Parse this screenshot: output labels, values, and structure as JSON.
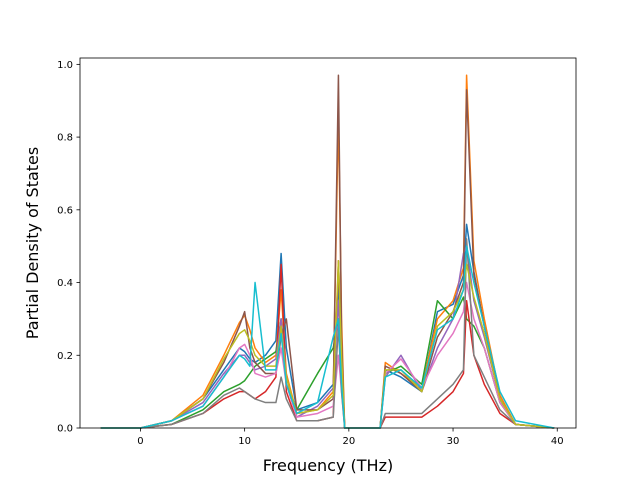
{
  "chart_data": {
    "type": "line",
    "title": "",
    "xlabel": "Frequency (THz)",
    "ylabel": "Partial Density of States",
    "xlim": [
      -5.8,
      41.8
    ],
    "ylim": [
      0,
      1.0175
    ],
    "xticks": [
      0,
      10,
      20,
      30,
      40
    ],
    "yticks": [
      0.0,
      0.2,
      0.4,
      0.6,
      0.8,
      1.0
    ],
    "xtick_labels": [
      "0",
      "10",
      "20",
      "30",
      "40"
    ],
    "ytick_labels": [
      "0.0",
      "0.2",
      "0.4",
      "0.6",
      "0.8",
      "1.0"
    ],
    "grid": false,
    "legend": "none",
    "series": [
      {
        "color": "#1f77b4",
        "x": [
          -3.8,
          0,
          3,
          6,
          8,
          9.5,
          10,
          10.5,
          11,
          12,
          13,
          13.5,
          14,
          15,
          17,
          18.5,
          19,
          19.3,
          19.6,
          23,
          23.5,
          25,
          27,
          28.5,
          30,
          31,
          31.3,
          32,
          33,
          34.5,
          36,
          39.7
        ],
        "y": [
          0,
          0,
          0.02,
          0.08,
          0.16,
          0.22,
          0.21,
          0.19,
          0.18,
          0.2,
          0.24,
          0.48,
          0.22,
          0.05,
          0.07,
          0.12,
          0.4,
          0.2,
          0.0,
          0.0,
          0.16,
          0.14,
          0.1,
          0.32,
          0.34,
          0.42,
          0.56,
          0.43,
          0.28,
          0.08,
          0.01,
          0
        ]
      },
      {
        "color": "#ff7f0e",
        "x": [
          -3.8,
          0,
          3,
          6,
          8,
          9.5,
          10,
          10.5,
          11,
          12,
          13,
          13.5,
          14,
          15,
          17,
          18.5,
          19,
          19.3,
          19.6,
          23,
          23.5,
          25,
          27,
          28.5,
          30,
          31,
          31.3,
          32,
          33,
          34.5,
          36,
          39.7
        ],
        "y": [
          0,
          0,
          0.02,
          0.09,
          0.2,
          0.29,
          0.31,
          0.27,
          0.22,
          0.18,
          0.2,
          0.38,
          0.15,
          0.04,
          0.05,
          0.1,
          0.86,
          0.3,
          0.0,
          0.0,
          0.18,
          0.15,
          0.11,
          0.3,
          0.35,
          0.44,
          0.97,
          0.46,
          0.3,
          0.09,
          0.01,
          0
        ]
      },
      {
        "color": "#2ca02c",
        "x": [
          -3.8,
          0,
          3,
          6,
          8,
          9.5,
          10,
          10.5,
          11,
          12,
          13,
          13.5,
          14,
          15,
          17,
          18.5,
          19,
          19.3,
          19.6,
          23,
          23.5,
          25,
          27,
          28.5,
          30,
          31,
          31.3,
          32,
          33,
          34.5,
          36,
          39.7
        ],
        "y": [
          0,
          0,
          0.01,
          0.05,
          0.1,
          0.12,
          0.13,
          0.15,
          0.17,
          0.19,
          0.21,
          0.3,
          0.12,
          0.05,
          0.15,
          0.22,
          0.3,
          0.15,
          0.0,
          0.0,
          0.15,
          0.17,
          0.12,
          0.35,
          0.3,
          0.36,
          0.3,
          0.28,
          0.22,
          0.07,
          0.01,
          0
        ]
      },
      {
        "color": "#d62728",
        "x": [
          -3.8,
          0,
          3,
          6,
          8,
          9.5,
          10,
          10.5,
          11,
          12,
          13,
          13.5,
          14,
          15,
          17,
          18.5,
          19,
          19.3,
          19.6,
          23,
          23.5,
          25,
          27,
          28.5,
          30,
          31,
          31.3,
          32,
          33,
          34.5,
          36,
          39.7
        ],
        "y": [
          0,
          0,
          0.01,
          0.04,
          0.08,
          0.1,
          0.1,
          0.09,
          0.08,
          0.1,
          0.14,
          0.45,
          0.1,
          0.02,
          0.02,
          0.03,
          0.46,
          0.2,
          0.0,
          0.0,
          0.03,
          0.03,
          0.03,
          0.06,
          0.1,
          0.15,
          0.35,
          0.2,
          0.12,
          0.04,
          0.01,
          0
        ]
      },
      {
        "color": "#9467bd",
        "x": [
          -3.8,
          0,
          3,
          6,
          8,
          9.5,
          10,
          10.5,
          11,
          12,
          13,
          13.5,
          14,
          15,
          17,
          18.5,
          19,
          19.3,
          19.6,
          23,
          23.5,
          25,
          27,
          28.5,
          30,
          31,
          31.3,
          32,
          33,
          34.5,
          36,
          39.7
        ],
        "y": [
          0,
          0,
          0.02,
          0.07,
          0.15,
          0.2,
          0.2,
          0.18,
          0.16,
          0.17,
          0.19,
          0.3,
          0.14,
          0.03,
          0.06,
          0.11,
          0.35,
          0.15,
          0.0,
          0.0,
          0.14,
          0.2,
          0.1,
          0.22,
          0.3,
          0.48,
          0.5,
          0.35,
          0.25,
          0.08,
          0.01,
          0
        ]
      },
      {
        "color": "#8c564b",
        "x": [
          -3.8,
          0,
          3,
          6,
          8,
          9.5,
          10,
          10.5,
          11,
          12,
          13,
          13.5,
          14,
          15,
          17,
          18.5,
          19,
          19.3,
          19.6,
          23,
          23.5,
          25,
          27,
          28.5,
          30,
          31,
          31.3,
          32,
          33,
          34.5,
          36,
          39.7
        ],
        "y": [
          0,
          0,
          0.02,
          0.08,
          0.18,
          0.28,
          0.32,
          0.22,
          0.18,
          0.15,
          0.15,
          0.25,
          0.3,
          0.05,
          0.05,
          0.08,
          0.97,
          0.25,
          0.0,
          0.0,
          0.17,
          0.15,
          0.1,
          0.25,
          0.32,
          0.4,
          0.93,
          0.42,
          0.28,
          0.08,
          0.01,
          0
        ]
      },
      {
        "color": "#e377c2",
        "x": [
          -3.8,
          0,
          3,
          6,
          8,
          9.5,
          10,
          10.5,
          11,
          12,
          13,
          13.5,
          14,
          15,
          17,
          18.5,
          19,
          19.3,
          19.6,
          23,
          23.5,
          25,
          27,
          28.5,
          30,
          31,
          31.3,
          32,
          33,
          34.5,
          36,
          39.7
        ],
        "y": [
          0,
          0,
          0.02,
          0.06,
          0.14,
          0.22,
          0.23,
          0.2,
          0.15,
          0.14,
          0.15,
          0.22,
          0.12,
          0.03,
          0.04,
          0.06,
          0.2,
          0.1,
          0.0,
          0.0,
          0.15,
          0.19,
          0.11,
          0.2,
          0.26,
          0.32,
          0.4,
          0.3,
          0.22,
          0.07,
          0.01,
          0
        ]
      },
      {
        "color": "#7f7f7f",
        "x": [
          -3.8,
          0,
          3,
          6,
          8,
          9.5,
          10,
          10.5,
          11,
          12,
          13,
          13.5,
          14,
          15,
          17,
          18.5,
          19,
          19.3,
          19.6,
          23,
          23.5,
          25,
          27,
          28.5,
          30,
          31,
          31.3,
          32,
          33,
          34.5,
          36,
          39.7
        ],
        "y": [
          0,
          0,
          0.01,
          0.04,
          0.09,
          0.11,
          0.1,
          0.09,
          0.08,
          0.07,
          0.07,
          0.14,
          0.08,
          0.02,
          0.02,
          0.03,
          0.28,
          0.1,
          0.0,
          0.0,
          0.04,
          0.04,
          0.04,
          0.08,
          0.12,
          0.16,
          0.52,
          0.2,
          0.14,
          0.05,
          0.01,
          0
        ]
      },
      {
        "color": "#bcbd22",
        "x": [
          -3.8,
          0,
          3,
          6,
          8,
          9.5,
          10,
          10.5,
          11,
          12,
          13,
          13.5,
          14,
          15,
          17,
          18.5,
          19,
          19.3,
          19.6,
          23,
          23.5,
          25,
          27,
          28.5,
          30,
          31,
          31.3,
          32,
          33,
          34.5,
          36,
          39.7
        ],
        "y": [
          0,
          0,
          0.02,
          0.08,
          0.19,
          0.26,
          0.27,
          0.24,
          0.2,
          0.17,
          0.17,
          0.28,
          0.14,
          0.04,
          0.05,
          0.09,
          0.46,
          0.2,
          0.0,
          0.0,
          0.16,
          0.16,
          0.1,
          0.28,
          0.32,
          0.38,
          0.45,
          0.36,
          0.26,
          0.08,
          0.01,
          0
        ]
      },
      {
        "color": "#17becf",
        "x": [
          -3.8,
          0,
          3,
          6,
          8,
          9.5,
          10,
          10.5,
          11,
          12,
          13,
          13.5,
          14,
          15,
          17,
          18.5,
          19,
          19.3,
          19.6,
          23,
          23.5,
          25,
          27,
          28.5,
          30,
          31,
          31.3,
          32,
          33,
          34.5,
          36,
          39.7
        ],
        "y": [
          0,
          0,
          0.02,
          0.06,
          0.14,
          0.2,
          0.19,
          0.17,
          0.4,
          0.16,
          0.16,
          0.26,
          0.12,
          0.04,
          0.07,
          0.25,
          0.3,
          0.12,
          0.0,
          0.0,
          0.14,
          0.16,
          0.11,
          0.27,
          0.3,
          0.38,
          0.5,
          0.4,
          0.28,
          0.1,
          0.02,
          0
        ]
      }
    ]
  }
}
